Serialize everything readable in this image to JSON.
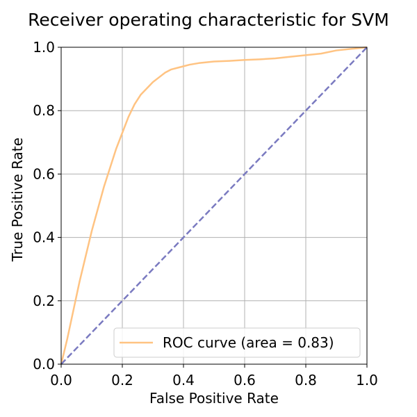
{
  "chart_data": {
    "type": "line",
    "title": "Receiver operating characteristic for SVM",
    "xlabel": "False Positive Rate",
    "ylabel": "True Positive Rate",
    "xlim": [
      0.0,
      1.0
    ],
    "ylim": [
      0.0,
      1.0
    ],
    "xticks": [
      "0.0",
      "0.2",
      "0.4",
      "0.6",
      "0.8",
      "1.0"
    ],
    "yticks": [
      "0.0",
      "0.2",
      "0.4",
      "0.6",
      "0.8",
      "1.0"
    ],
    "grid": true,
    "legend_position": "lower-right",
    "series": [
      {
        "name": "ROC curve (area = 0.83)",
        "color": "#ffc382",
        "style": "solid",
        "x": [
          0.0,
          0.01,
          0.02,
          0.04,
          0.06,
          0.08,
          0.1,
          0.12,
          0.14,
          0.16,
          0.18,
          0.2,
          0.22,
          0.24,
          0.26,
          0.28,
          0.3,
          0.32,
          0.34,
          0.36,
          0.38,
          0.4,
          0.42,
          0.45,
          0.5,
          0.55,
          0.6,
          0.65,
          0.7,
          0.75,
          0.8,
          0.85,
          0.9,
          0.95,
          1.0
        ],
        "y": [
          0.0,
          0.04,
          0.08,
          0.17,
          0.26,
          0.34,
          0.42,
          0.49,
          0.56,
          0.62,
          0.68,
          0.73,
          0.78,
          0.82,
          0.85,
          0.87,
          0.89,
          0.905,
          0.92,
          0.93,
          0.935,
          0.94,
          0.945,
          0.95,
          0.955,
          0.957,
          0.96,
          0.962,
          0.965,
          0.97,
          0.975,
          0.98,
          0.99,
          0.995,
          1.0
        ]
      },
      {
        "color": "#7a7ac0",
        "style": "dashed",
        "x": [
          0.0,
          1.0
        ],
        "y": [
          0.0,
          1.0
        ]
      }
    ]
  }
}
